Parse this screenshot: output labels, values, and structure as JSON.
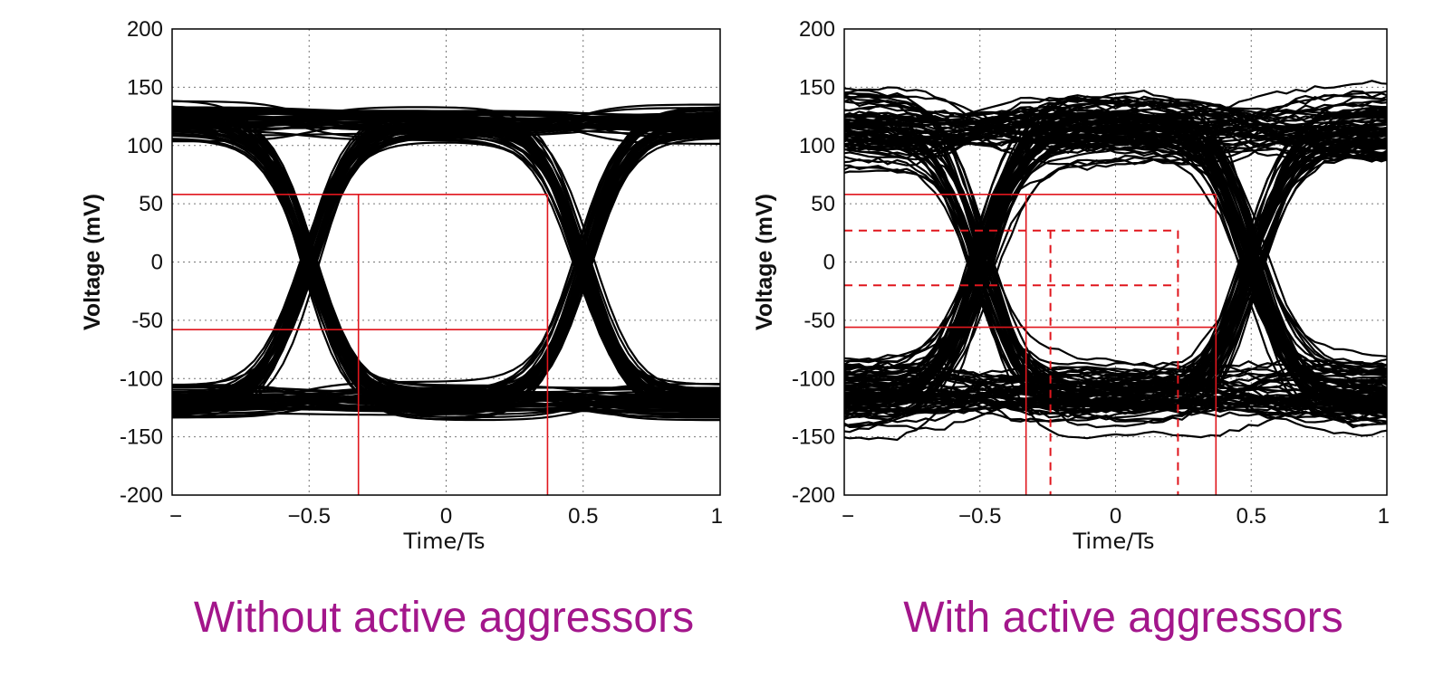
{
  "chart_data": [
    {
      "type": "eye-diagram",
      "caption": "Without active aggressors",
      "xlabel": "Time/Ts",
      "ylabel": "Voltage (mV)",
      "xlim": [
        -1,
        1
      ],
      "ylim": [
        -200,
        200
      ],
      "x_ticks": [
        "− ",
        "−0.5",
        "0",
        "0.5",
        "1"
      ],
      "y_ticks": [
        "200",
        "150",
        "100",
        "50",
        "0",
        "-50",
        "-100",
        "-150",
        "-200"
      ],
      "grid": true,
      "signal_levels_mv": [
        120,
        -120
      ],
      "crossings_ts": [
        -0.5,
        0.5
      ],
      "eye_mask": {
        "solid": {
          "t": [
            -0.32,
            0.37
          ],
          "v": [
            -58,
            58
          ]
        }
      },
      "colors": {
        "traces": "#000000",
        "mask": "#e0161d"
      }
    },
    {
      "type": "eye-diagram",
      "caption": "With active aggressors",
      "xlabel": "Time/Ts",
      "ylabel": "Voltage (mV)",
      "xlim": [
        -1,
        1
      ],
      "ylim": [
        -200,
        200
      ],
      "x_ticks": [
        "− ",
        "−0.5",
        "0",
        "0.5",
        "1"
      ],
      "y_ticks": [
        "200",
        "150",
        "100",
        "50",
        "0",
        "-50",
        "-100",
        "-150",
        "-200"
      ],
      "grid": true,
      "signal_levels_mv": [
        115,
        -115
      ],
      "crossings_ts": [
        -0.5,
        0.5
      ],
      "eye_mask": {
        "solid": {
          "t": [
            -0.33,
            0.37
          ],
          "v": [
            -56,
            58
          ]
        },
        "dashed": {
          "t": [
            -0.24,
            0.23
          ],
          "v": [
            -20,
            27
          ]
        }
      },
      "colors": {
        "traces": "#000000",
        "mask": "#e0161d"
      }
    }
  ]
}
